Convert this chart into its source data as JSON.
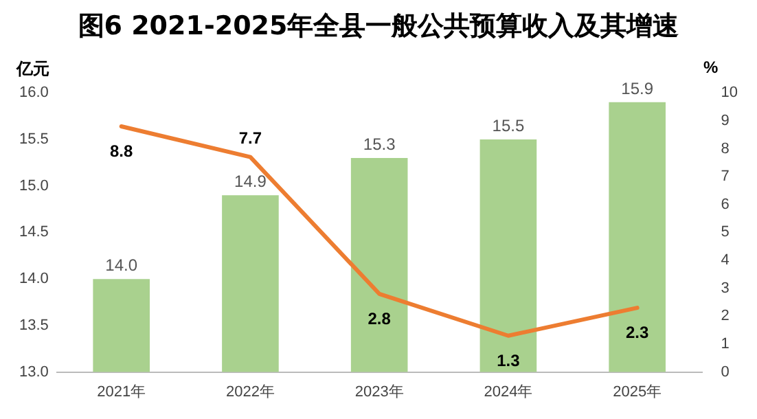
{
  "chart_data": {
    "type": "bar",
    "title": "图6  2021-2025年全县一般公共预算收入及其增速",
    "ylabel": "亿元",
    "y2label": "%",
    "categories": [
      "2021年",
      "2022年",
      "2023年",
      "2024年",
      "2025年"
    ],
    "series": [
      {
        "color": "#a9d18e",
        "values": [
          14.0,
          14.9,
          15.3,
          15.5,
          15.9
        ],
        "value_labels": [
          "14.0",
          "14.9",
          "15.3",
          "15.5",
          "15.9"
        ]
      },
      {
        "type": "line",
        "axis": "y2",
        "color": "#ed7d31",
        "values": [
          8.8,
          7.7,
          2.8,
          1.3,
          2.3
        ],
        "value_labels": [
          "8.8",
          "7.7",
          "2.8",
          "1.3",
          "2.3"
        ]
      }
    ],
    "ylim": [
      13.0,
      16.0
    ],
    "yticks": [
      {
        "value": 13,
        "label": "13.0"
      },
      {
        "value": 13.5,
        "label": "13.5"
      },
      {
        "value": 14,
        "label": "14.0"
      },
      {
        "value": 14.5,
        "label": "14.5"
      },
      {
        "value": 15,
        "label": "15.0"
      },
      {
        "value": 15.5,
        "label": "15.5"
      },
      {
        "value": 16,
        "label": "16.0"
      }
    ],
    "y2lim": [
      0,
      10
    ],
    "y2ticks": [
      0,
      1,
      2,
      3,
      4,
      5,
      6,
      7,
      8,
      9,
      10
    ],
    "legend": false,
    "grid": false,
    "marker": "none",
    "line_style": "solid"
  }
}
